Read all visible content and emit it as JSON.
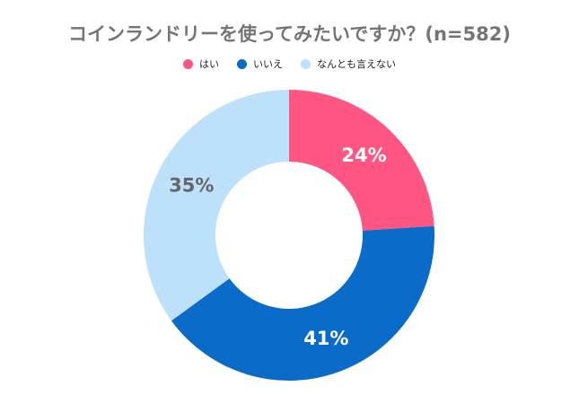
{
  "chart_data": {
    "type": "pie",
    "title": "コインランドリーを使ってみたいですか？(n=582)",
    "categories": [
      "はい",
      "いいえ",
      "なんとも言えない"
    ],
    "values": [
      24,
      41,
      35
    ],
    "labels": [
      "24%",
      "41%",
      "35%"
    ],
    "colors": [
      "#FF5582",
      "#0A6BC8",
      "#BDE0FB"
    ],
    "label_colors": [
      "#ffffff",
      "#ffffff",
      "#666666"
    ],
    "legend": "top",
    "donut": true
  }
}
